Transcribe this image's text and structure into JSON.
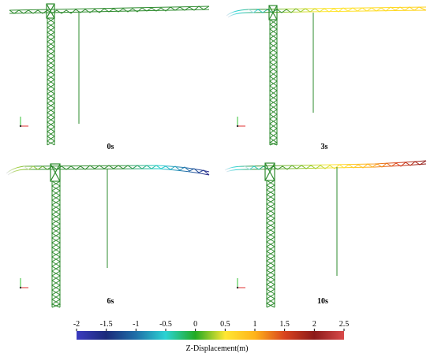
{
  "panels": [
    {
      "label": "0s",
      "boom_color_scheme": "green"
    },
    {
      "label": "3s",
      "boom_color_scheme": "cyan-yellow"
    },
    {
      "label": "6s",
      "boom_color_scheme": "green-blue"
    },
    {
      "label": "10s",
      "boom_color_scheme": "yellow-red"
    }
  ],
  "colorbar": {
    "title": "Z-Displacement(m)",
    "ticks": [
      "-2",
      "-1.5",
      "-1",
      "-0.5",
      "0",
      "0.5",
      "1",
      "1.5",
      "2",
      "2.5"
    ],
    "range": [
      -2,
      2.5
    ],
    "colors": [
      "#3b3bbf",
      "#1a2a7a",
      "#1f6fa8",
      "#2bd3d3",
      "#22aa22",
      "#ffe733",
      "#ffb31a",
      "#d9431f",
      "#8c1a1a",
      "#d94a4a"
    ]
  },
  "colors": {
    "structure_green": "#2e8b2e",
    "axis_red": "#e03030",
    "axis_green": "#30c030"
  }
}
